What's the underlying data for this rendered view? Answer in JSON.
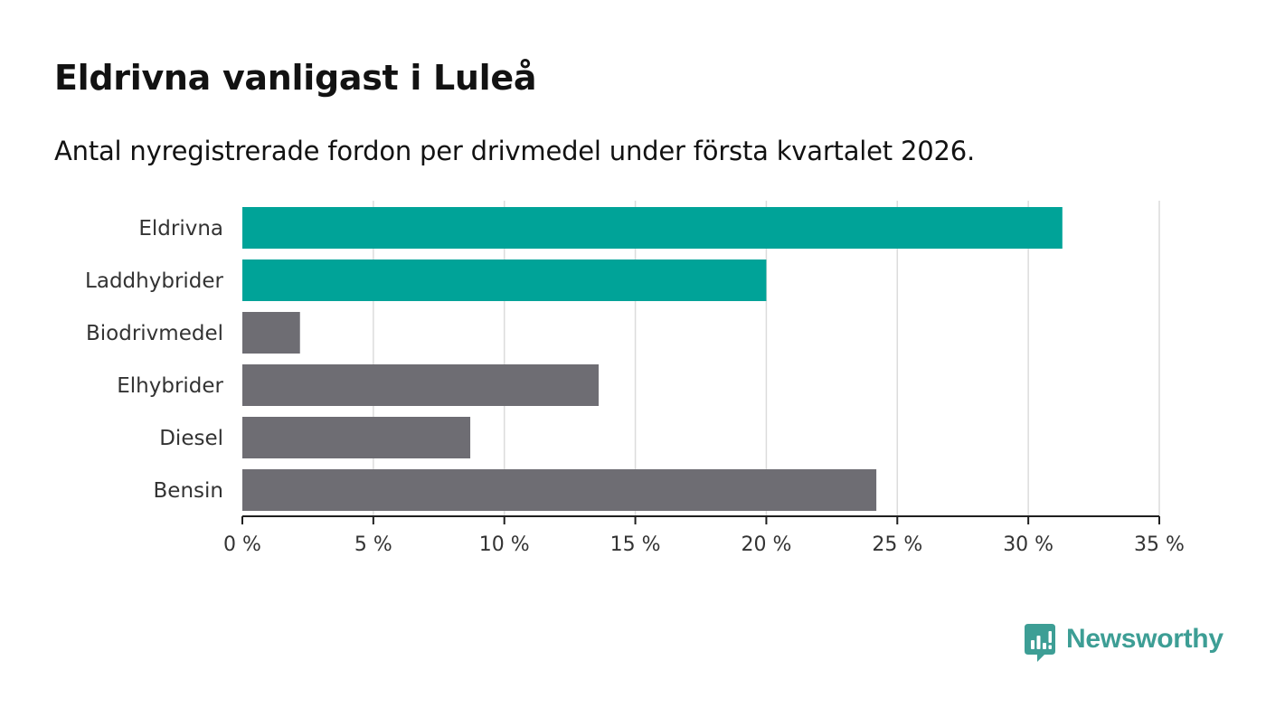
{
  "header": {
    "title": "Eldrivna vanligast i Luleå",
    "subtitle": "Antal nyregistrerade fordon per drivmedel under första kvartalet 2026."
  },
  "chart_data": {
    "type": "bar",
    "orientation": "horizontal",
    "categories": [
      "Eldrivna",
      "Laddhybrider",
      "Biodrivmedel",
      "Elhybrider",
      "Diesel",
      "Bensin"
    ],
    "values": [
      31.3,
      20.0,
      2.2,
      13.6,
      8.7,
      24.2
    ],
    "colors": [
      "#00a398",
      "#00a398",
      "#6e6d73",
      "#6e6d73",
      "#6e6d73",
      "#6e6d73"
    ],
    "xlim": [
      0,
      35
    ],
    "xticks": [
      0,
      5,
      10,
      15,
      20,
      25,
      30,
      35
    ],
    "xtick_labels": [
      "0 %",
      "5 %",
      "10 %",
      "15 %",
      "20 %",
      "25 %",
      "30 %",
      "35 %"
    ],
    "unit": "%",
    "grid": true
  },
  "brand": {
    "name": "Newsworthy",
    "color": "#3d9e95"
  }
}
